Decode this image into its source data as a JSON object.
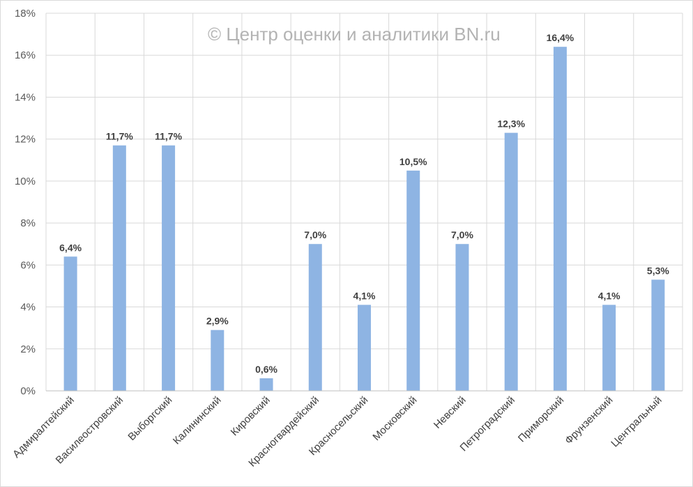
{
  "chart_data": {
    "type": "bar",
    "watermark": "© Центр оценки и аналитики BN.ru",
    "categories": [
      "Адмиралтейский",
      "Василеостровский",
      "Выборгский",
      "Калининский",
      "Кировский",
      "Красногвардейский",
      "Красносельский",
      "Московский",
      "Невский",
      "Петроградский",
      "Приморский",
      "Фрунзенский",
      "Центральный"
    ],
    "values": [
      6.4,
      11.7,
      11.7,
      2.9,
      0.6,
      7.0,
      4.1,
      10.5,
      7.0,
      12.3,
      16.4,
      4.1,
      5.3
    ],
    "value_labels": [
      "6,4%",
      "11,7%",
      "11,7%",
      "2,9%",
      "0,6%",
      "7,0%",
      "4,1%",
      "10,5%",
      "7,0%",
      "12,3%",
      "16,4%",
      "4,1%",
      "5,3%"
    ],
    "y_ticks": [
      0,
      2,
      4,
      6,
      8,
      10,
      12,
      14,
      16,
      18
    ],
    "y_tick_labels": [
      "0%",
      "2%",
      "4%",
      "6%",
      "8%",
      "10%",
      "12%",
      "14%",
      "16%",
      "18%"
    ],
    "ylim": [
      0,
      18
    ],
    "grid": true,
    "bar_color": "#8eb4e3",
    "grid_color": "#d9d9d9"
  }
}
